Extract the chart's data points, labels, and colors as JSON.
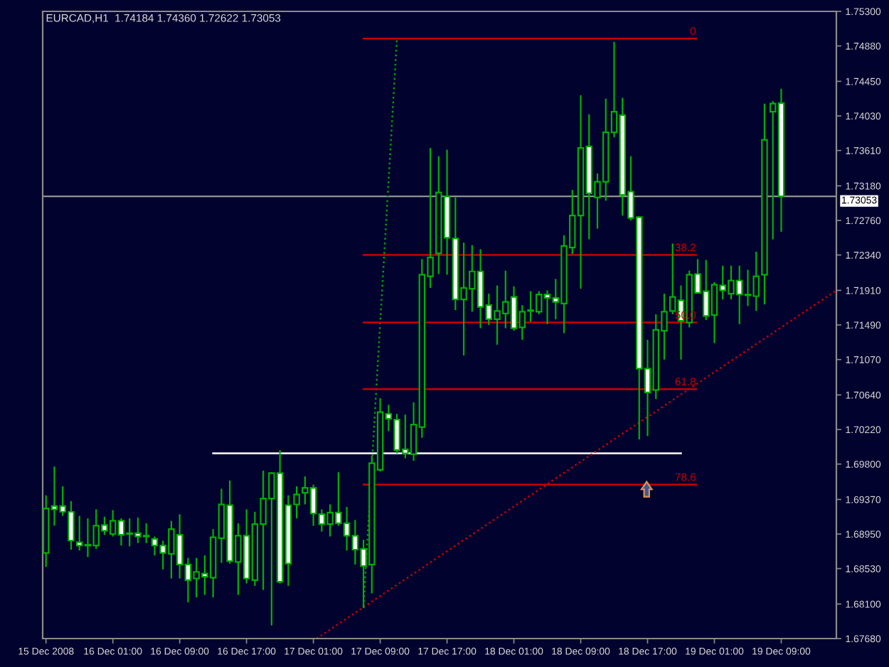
{
  "chart_data": {
    "type": "candlestick",
    "title": "EURCAD,H1  1.74184 1.74360 1.72622 1.73053",
    "color": "#00b000",
    "x": [
      "2008-12-15T17:00",
      "2008-12-15T18:00",
      "2008-12-15T19:00",
      "2008-12-15T20:00",
      "2008-12-15T21:00",
      "2008-12-15T22:00",
      "2008-12-15T23:00",
      "2008-12-16T00:00",
      "2008-12-16T01:00",
      "2008-12-16T02:00",
      "2008-12-16T03:00",
      "2008-12-16T04:00",
      "2008-12-16T05:00",
      "2008-12-16T06:00",
      "2008-12-16T07:00",
      "2008-12-16T08:00",
      "2008-12-16T09:00",
      "2008-12-16T10:00",
      "2008-12-16T11:00",
      "2008-12-16T12:00",
      "2008-12-16T13:00",
      "2008-12-16T14:00",
      "2008-12-16T15:00",
      "2008-12-16T16:00",
      "2008-12-16T17:00",
      "2008-12-16T18:00",
      "2008-12-16T19:00",
      "2008-12-16T20:00",
      "2008-12-16T21:00",
      "2008-12-16T22:00",
      "2008-12-16T23:00",
      "2008-12-17T00:00",
      "2008-12-17T01:00",
      "2008-12-17T02:00",
      "2008-12-17T03:00",
      "2008-12-17T04:00",
      "2008-12-17T05:00",
      "2008-12-17T06:00",
      "2008-12-17T07:00",
      "2008-12-17T08:00",
      "2008-12-17T09:00",
      "2008-12-17T10:00",
      "2008-12-17T11:00",
      "2008-12-17T12:00",
      "2008-12-17T13:00",
      "2008-12-17T14:00",
      "2008-12-17T15:00",
      "2008-12-17T16:00",
      "2008-12-17T17:00",
      "2008-12-17T18:00",
      "2008-12-17T19:00",
      "2008-12-17T20:00",
      "2008-12-17T21:00",
      "2008-12-17T22:00",
      "2008-12-17T23:00",
      "2008-12-18T00:00",
      "2008-12-18T01:00",
      "2008-12-18T02:00",
      "2008-12-18T03:00",
      "2008-12-18T04:00",
      "2008-12-18T05:00",
      "2008-12-18T06:00",
      "2008-12-18T07:00",
      "2008-12-18T08:00",
      "2008-12-18T09:00",
      "2008-12-18T10:00",
      "2008-12-18T11:00",
      "2008-12-18T12:00",
      "2008-12-18T13:00",
      "2008-12-18T14:00",
      "2008-12-18T15:00",
      "2008-12-18T16:00",
      "2008-12-18T17:00",
      "2008-12-18T18:00",
      "2008-12-18T19:00",
      "2008-12-18T20:00",
      "2008-12-18T21:00",
      "2008-12-18T22:00",
      "2008-12-18T23:00",
      "2008-12-19T00:00",
      "2008-12-19T01:00",
      "2008-12-19T02:00",
      "2008-12-19T03:00",
      "2008-12-19T04:00",
      "2008-12-19T05:00",
      "2008-12-19T06:00",
      "2008-12-19T07:00",
      "2008-12-19T08:00",
      "2008-12-19T09:00"
    ],
    "ohlc": [
      [
        1.6872,
        1.6942,
        1.6855,
        1.6926
      ],
      [
        1.6929,
        1.6977,
        1.6905,
        1.6925
      ],
      [
        1.6929,
        1.6953,
        1.6917,
        1.6922
      ],
      [
        1.6922,
        1.6935,
        1.6876,
        1.6887
      ],
      [
        1.6885,
        1.6917,
        1.6875,
        1.6881
      ],
      [
        1.6882,
        1.6914,
        1.6867,
        1.6881
      ],
      [
        1.6881,
        1.6925,
        1.6877,
        1.6905
      ],
      [
        1.6906,
        1.6916,
        1.6894,
        1.6899
      ],
      [
        1.6895,
        1.6924,
        1.6892,
        1.6911
      ],
      [
        1.6911,
        1.6914,
        1.6881,
        1.6894
      ],
      [
        1.6896,
        1.6914,
        1.688,
        1.6895
      ],
      [
        1.6896,
        1.6915,
        1.6884,
        1.6892
      ],
      [
        1.6893,
        1.6908,
        1.6884,
        1.6892
      ],
      [
        1.6889,
        1.6892,
        1.6869,
        1.6881
      ],
      [
        1.6881,
        1.6887,
        1.6852,
        1.6872
      ],
      [
        1.6871,
        1.6911,
        1.6841,
        1.6901
      ],
      [
        1.6894,
        1.6919,
        1.6841,
        1.6858
      ],
      [
        1.6858,
        1.6866,
        1.6812,
        1.6839
      ],
      [
        1.6841,
        1.6866,
        1.6818,
        1.6849
      ],
      [
        1.6847,
        1.6869,
        1.6821,
        1.6843
      ],
      [
        1.6842,
        1.6901,
        1.6818,
        1.6891
      ],
      [
        1.689,
        1.695,
        1.686,
        1.6931
      ],
      [
        1.693,
        1.696,
        1.6859,
        1.6862
      ],
      [
        1.6861,
        1.6908,
        1.6821,
        1.6893
      ],
      [
        1.6893,
        1.6925,
        1.6835,
        1.6841
      ],
      [
        1.6839,
        1.6922,
        1.6832,
        1.6907
      ],
      [
        1.6907,
        1.6972,
        1.6827,
        1.6938
      ],
      [
        1.6938,
        1.697,
        1.6784,
        1.6969
      ],
      [
        1.6969,
        1.6997,
        1.6835,
        1.6837
      ],
      [
        1.693,
        1.6942,
        1.6832,
        1.6859
      ],
      [
        1.6931,
        1.6953,
        1.6914,
        1.6943
      ],
      [
        1.6945,
        1.6965,
        1.6931,
        1.6951
      ],
      [
        1.6951,
        1.6955,
        1.6905,
        1.692
      ],
      [
        1.6919,
        1.6925,
        1.6898,
        1.6907
      ],
      [
        1.6907,
        1.6931,
        1.6892,
        1.6921
      ],
      [
        1.6921,
        1.697,
        1.6905,
        1.6908
      ],
      [
        1.6908,
        1.6928,
        1.6875,
        1.6893
      ],
      [
        1.6893,
        1.6912,
        1.6858,
        1.6876
      ],
      [
        1.6877,
        1.6888,
        1.6805,
        1.6856
      ],
      [
        1.6858,
        1.699,
        1.6823,
        1.6981
      ],
      [
        1.6973,
        1.706,
        1.6971,
        1.7043
      ],
      [
        1.7041,
        1.7052,
        1.702,
        1.7035
      ],
      [
        1.7034,
        1.7041,
        1.6993,
        1.6997
      ],
      [
        1.6998,
        1.704,
        1.6987,
        1.6993
      ],
      [
        1.6992,
        1.7055,
        1.6984,
        1.7028
      ],
      [
        1.7025,
        1.7229,
        1.7012,
        1.721
      ],
      [
        1.7208,
        1.7364,
        1.7194,
        1.7231
      ],
      [
        1.7236,
        1.7354,
        1.7211,
        1.731
      ],
      [
        1.7305,
        1.7362,
        1.721,
        1.7255
      ],
      [
        1.7254,
        1.7304,
        1.7167,
        1.718
      ],
      [
        1.718,
        1.7249,
        1.7112,
        1.7194
      ],
      [
        1.7193,
        1.7246,
        1.7165,
        1.7214
      ],
      [
        1.7214,
        1.7241,
        1.7145,
        1.7171
      ],
      [
        1.7173,
        1.7187,
        1.7149,
        1.7156
      ],
      [
        1.7156,
        1.7197,
        1.7125,
        1.7166
      ],
      [
        1.7163,
        1.7215,
        1.7145,
        1.7177
      ],
      [
        1.7183,
        1.7196,
        1.7142,
        1.7145
      ],
      [
        1.7146,
        1.7173,
        1.7131,
        1.7165
      ],
      [
        1.7167,
        1.719,
        1.7153,
        1.7166
      ],
      [
        1.7165,
        1.719,
        1.7162,
        1.7186
      ],
      [
        1.7186,
        1.7191,
        1.715,
        1.7182
      ],
      [
        1.7182,
        1.7205,
        1.7156,
        1.7177
      ],
      [
        1.7175,
        1.7258,
        1.7139,
        1.7245
      ],
      [
        1.7243,
        1.7313,
        1.7235,
        1.7282
      ],
      [
        1.7282,
        1.7428,
        1.7193,
        1.7364
      ],
      [
        1.7366,
        1.7405,
        1.7253,
        1.7309
      ],
      [
        1.7304,
        1.7333,
        1.7266,
        1.7323
      ],
      [
        1.7323,
        1.7424,
        1.73,
        1.7383
      ],
      [
        1.7383,
        1.7493,
        1.7377,
        1.7408
      ],
      [
        1.7404,
        1.7425,
        1.7282,
        1.7307
      ],
      [
        1.7311,
        1.7354,
        1.7276,
        1.7279
      ],
      [
        1.728,
        1.7281,
        1.701,
        1.7096
      ],
      [
        1.7096,
        1.7131,
        1.7014,
        1.7067
      ],
      [
        1.707,
        1.7162,
        1.7059,
        1.7143
      ],
      [
        1.7142,
        1.7187,
        1.7107,
        1.7165
      ],
      [
        1.7166,
        1.7248,
        1.7162,
        1.7183
      ],
      [
        1.7179,
        1.7197,
        1.7107,
        1.7154
      ],
      [
        1.7152,
        1.7215,
        1.7146,
        1.721
      ],
      [
        1.7211,
        1.7229,
        1.7187,
        1.7188
      ],
      [
        1.719,
        1.7228,
        1.7155,
        1.716
      ],
      [
        1.7161,
        1.7201,
        1.7127,
        1.7198
      ],
      [
        1.7197,
        1.7221,
        1.718,
        1.7191
      ],
      [
        1.7187,
        1.7221,
        1.718,
        1.7203
      ],
      [
        1.7203,
        1.7221,
        1.715,
        1.7186
      ],
      [
        1.7186,
        1.7216,
        1.7172,
        1.7185
      ],
      [
        1.7184,
        1.7238,
        1.7166,
        1.7208
      ],
      [
        1.721,
        1.7418,
        1.7174,
        1.7374
      ],
      [
        1.7408,
        1.7421,
        1.7253,
        1.7418
      ],
      [
        1.74184,
        1.7436,
        1.72622,
        1.73053
      ]
    ],
    "series": [
      {
        "type": "line",
        "color": "#ffffff",
        "line_style": "solid",
        "x": [
          "2008-12-16T13:00",
          "2008-12-18T21:00"
        ],
        "values": [
          1.6993,
          1.6993
        ]
      },
      {
        "type": "line",
        "color": "#c80000",
        "line_style": "dotted",
        "x": [
          "2008-12-17T01:24",
          "2008-12-19T15:36"
        ],
        "values": [
          1.6768,
          1.7191
        ]
      },
      {
        "type": "line",
        "color": "#00a000",
        "line_style": "dotted",
        "x": [
          "2008-12-17T07:00",
          "2008-12-17T11:00"
        ],
        "values": [
          1.6807,
          1.7497
        ]
      },
      {
        "type": "line",
        "name": "0",
        "color": "#c80000",
        "line_style": "solid",
        "x": [
          "2008-12-17T07:00",
          "2008-12-18T22:48"
        ],
        "values": [
          1.7497,
          1.7497
        ]
      },
      {
        "type": "line",
        "name": "38.2",
        "color": "#c80000",
        "line_style": "solid",
        "x": [
          "2008-12-17T07:00",
          "2008-12-18T22:48"
        ],
        "values": [
          1.7234,
          1.7234
        ]
      },
      {
        "type": "line",
        "name": "50.0",
        "color": "#c80000",
        "line_style": "solid",
        "x": [
          "2008-12-17T07:00",
          "2008-12-18T22:48"
        ],
        "values": [
          1.7152,
          1.7152
        ]
      },
      {
        "type": "line",
        "name": "61.8",
        "color": "#c80000",
        "line_style": "solid",
        "x": [
          "2008-12-17T07:00",
          "2008-12-18T22:48"
        ],
        "values": [
          1.7071,
          1.7071
        ]
      },
      {
        "type": "line",
        "name": "78.6",
        "color": "#c80000",
        "line_style": "solid",
        "x": [
          "2008-12-17T07:00",
          "2008-12-18T22:48"
        ],
        "values": [
          1.6955,
          1.6955
        ]
      }
    ],
    "ref_lines": [
      {
        "axis": "y",
        "value": 1.73053,
        "label": "1.73053",
        "color": "#909090"
      }
    ],
    "xlim": [
      "2008-12-15T16:36",
      "2008-12-19T15:36"
    ],
    "xticks": [
      {
        "value": "2008-12-15T17:00",
        "label": "15 Dec 2008"
      },
      {
        "value": "2008-12-16T01:00",
        "label": "16 Dec 01:00"
      },
      {
        "value": "2008-12-16T09:00",
        "label": "16 Dec 09:00"
      },
      {
        "value": "2008-12-16T17:00",
        "label": "16 Dec 17:00"
      },
      {
        "value": "2008-12-17T01:00",
        "label": "17 Dec 01:00"
      },
      {
        "value": "2008-12-17T09:00",
        "label": "17 Dec 09:00"
      },
      {
        "value": "2008-12-17T17:00",
        "label": "17 Dec 17:00"
      },
      {
        "value": "2008-12-18T01:00",
        "label": "18 Dec 01:00"
      },
      {
        "value": "2008-12-18T09:00",
        "label": "18 Dec 09:00"
      },
      {
        "value": "2008-12-18T17:00",
        "label": "18 Dec 17:00"
      },
      {
        "value": "2008-12-19T01:00",
        "label": "19 Dec 01:00"
      },
      {
        "value": "2008-12-19T09:00",
        "label": "19 Dec 09:00"
      }
    ],
    "ylim": [
      1.6768,
      1.753
    ],
    "yticks": [
      {
        "value": 1.753,
        "label": "1.75300"
      },
      {
        "value": 1.7488,
        "label": "1.74880"
      },
      {
        "value": 1.7445,
        "label": "1.74450"
      },
      {
        "value": 1.7403,
        "label": "1.74030"
      },
      {
        "value": 1.7361,
        "label": "1.73610"
      },
      {
        "value": 1.7318,
        "label": "1.73180"
      },
      {
        "value": 1.7276,
        "label": "1.72760"
      },
      {
        "value": 1.7234,
        "label": "1.72340"
      },
      {
        "value": 1.7191,
        "label": "1.71910"
      },
      {
        "value": 1.7149,
        "label": "1.71490"
      },
      {
        "value": 1.7107,
        "label": "1.71070"
      },
      {
        "value": 1.7064,
        "label": "1.70640"
      },
      {
        "value": 1.7022,
        "label": "1.70220"
      },
      {
        "value": 1.698,
        "label": "1.69800"
      },
      {
        "value": 1.6937,
        "label": "1.69370"
      },
      {
        "value": 1.6895,
        "label": "1.68950"
      },
      {
        "value": 1.6853,
        "label": "1.68530"
      },
      {
        "value": 1.681,
        "label": "1.68100"
      },
      {
        "value": 1.6768,
        "label": "1.67680"
      }
    ]
  }
}
